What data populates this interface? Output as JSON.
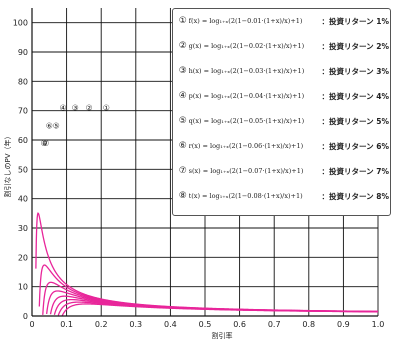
{
  "chart_data": {
    "type": "line",
    "xlabel": "割引率",
    "ylabel": "割引なしのPV（年）",
    "xlim": [
      0,
      1.0
    ],
    "ylim": [
      0,
      105
    ],
    "x_ticks": [
      "0",
      "0.1",
      "0.2",
      "0.3",
      "0.4",
      "0.5",
      "0.6",
      "0.7",
      "0.8",
      "0.9",
      "1.0"
    ],
    "y_ticks": [
      "0",
      "10",
      "20",
      "30",
      "40",
      "50",
      "60",
      "70",
      "80",
      "90",
      "100"
    ],
    "grid": true,
    "line_color": "#e8269a",
    "series": [
      {
        "name": "① f(x) = log₁₊ₓ((2(1−0.01·(1+x)/x)+1)) : 投資リターン 1%",
        "rate": 0.01,
        "tag": "①"
      },
      {
        "name": "② g(x) = log₁₊ₓ((2(1−0.02·(1+x)/x)+1)) : 投資リターン 2%",
        "rate": 0.02,
        "tag": "②"
      },
      {
        "name": "③ h(x) = log₁₊ₓ((2(1−0.03·(1+x)/x)+1)) : 投資リターン 3%",
        "rate": 0.03,
        "tag": "③"
      },
      {
        "name": "④ p(x) = log₁₊ₓ((2(1−0.04·(1+x)/x)+1)) : 投資リターン 4%",
        "rate": 0.04,
        "tag": "④"
      },
      {
        "name": "⑤ q(x) = log₁₊ₓ((2(1−0.05·(1+x)/x)+1)) : 投資リターン 5%",
        "rate": 0.05,
        "tag": "⑤"
      },
      {
        "name": "⑥ r(x) = log₁₊ₓ((2(1−0.06·(1+x)/x)+1)) : 投資リターン 6%",
        "rate": 0.06,
        "tag": "⑥"
      },
      {
        "name": "⑦ s(x) = log₁₊ₓ((2(1−0.07·(1+x)/x)+1)) : 投資リターン 7%",
        "rate": 0.07,
        "tag": "⑦"
      },
      {
        "name": "⑧ t(x) = log₁₊ₓ((2(1−0.08·(1+x)/x)+1)) : 投資リターン 8%",
        "rate": 0.08,
        "tag": "⑧"
      }
    ],
    "curve_labels": [
      "①",
      "②",
      "③",
      "④",
      "⑤",
      "⑥",
      "⑦",
      "⑧"
    ]
  },
  "legend": {
    "items": [
      {
        "num": "①",
        "formula": "f(x) = log₁₊ₓ(2(1−0.01·(1+x)/x)+1)",
        "label": "：投資リターン 1%"
      },
      {
        "num": "②",
        "formula": "g(x) = log₁₊ₓ(2(1−0.02·(1+x)/x)+1)",
        "label": "：投資リターン 2%"
      },
      {
        "num": "③",
        "formula": "h(x) = log₁₊ₓ(2(1−0.03·(1+x)/x)+1)",
        "label": "：投資リターン 3%"
      },
      {
        "num": "④",
        "formula": "p(x) = log₁₊ₓ(2(1−0.04·(1+x)/x)+1)",
        "label": "：投資リターン 4%"
      },
      {
        "num": "⑤",
        "formula": "q(x) = log₁₊ₓ(2(1−0.05·(1+x)/x)+1)",
        "label": "：投資リターン 5%"
      },
      {
        "num": "⑥",
        "formula": "r(x) = log₁₊ₓ(2(1−0.06·(1+x)/x)+1)",
        "label": "：投資リターン 6%"
      },
      {
        "num": "⑦",
        "formula": "s(x) = log₁₊ₓ(2(1−0.07·(1+x)/x)+1)",
        "label": "：投資リターン 7%"
      },
      {
        "num": "⑧",
        "formula": "t(x) = log₁₊ₓ(2(1−0.08·(1+x)/x)+1)",
        "label": "：投資リターン 8%"
      }
    ]
  }
}
